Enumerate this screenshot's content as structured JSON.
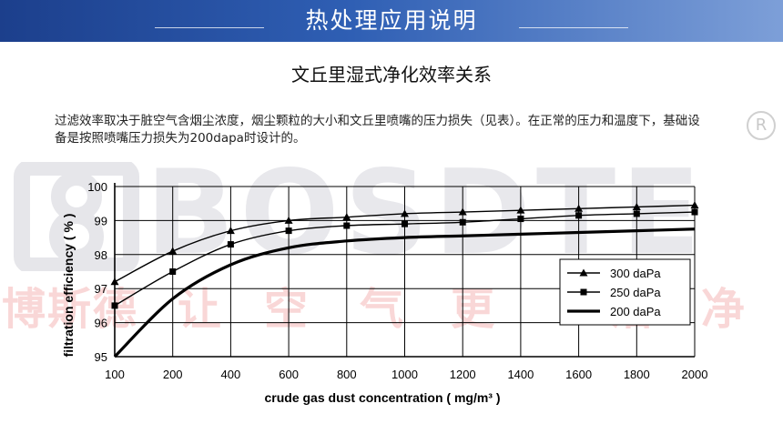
{
  "header": {
    "title": "热处理应用说明",
    "banner_color": "#2a56a8"
  },
  "subtitle": "文丘里湿式净化效率关系",
  "description": "过滤效率取决于脏空气含烟尘浓度，烟尘颗粒的大小和文丘里喷嘴的压力损失（见表）。在正常的压力和温度下，基础设备是按照喷嘴压力损失为200dapa时设计的。",
  "watermark": {
    "brand": "BOSDTE",
    "registered": "R",
    "slogan": [
      "博",
      "斯",
      "德",
      "让",
      "空",
      "气",
      "更",
      "洁",
      "净"
    ]
  },
  "chart_data": {
    "type": "line",
    "xlabel": "crude gas dust concentration",
    "xunit": "( mg/m³ )",
    "ylabel": "filtration efficiency",
    "yunit": "( % )",
    "x": [
      100,
      200,
      400,
      600,
      800,
      1000,
      1200,
      1400,
      1600,
      1800,
      2000
    ],
    "xticks": [
      "100",
      "200",
      "400",
      "600",
      "800",
      "1000",
      "1200",
      "1400",
      "1600",
      "1800",
      "2000"
    ],
    "xlim": [
      100,
      2000
    ],
    "yticks": [
      "95",
      "96",
      "97",
      "98",
      "99",
      "100"
    ],
    "ylim": [
      95,
      100
    ],
    "grid": true,
    "legend_position": "bottom-right",
    "series": [
      {
        "name": "300 daPa",
        "marker": "triangle",
        "values": [
          97.2,
          98.1,
          98.7,
          99.0,
          99.1,
          99.2,
          99.25,
          99.3,
          99.35,
          99.4,
          99.45
        ]
      },
      {
        "name": "250 daPa",
        "marker": "square",
        "values": [
          96.5,
          97.5,
          98.3,
          98.7,
          98.85,
          98.9,
          98.95,
          99.05,
          99.15,
          99.2,
          99.25
        ]
      },
      {
        "name": "200 daPa",
        "marker": "none",
        "values": [
          95.0,
          96.7,
          97.7,
          98.2,
          98.4,
          98.5,
          98.55,
          98.6,
          98.65,
          98.7,
          98.75
        ]
      }
    ]
  }
}
